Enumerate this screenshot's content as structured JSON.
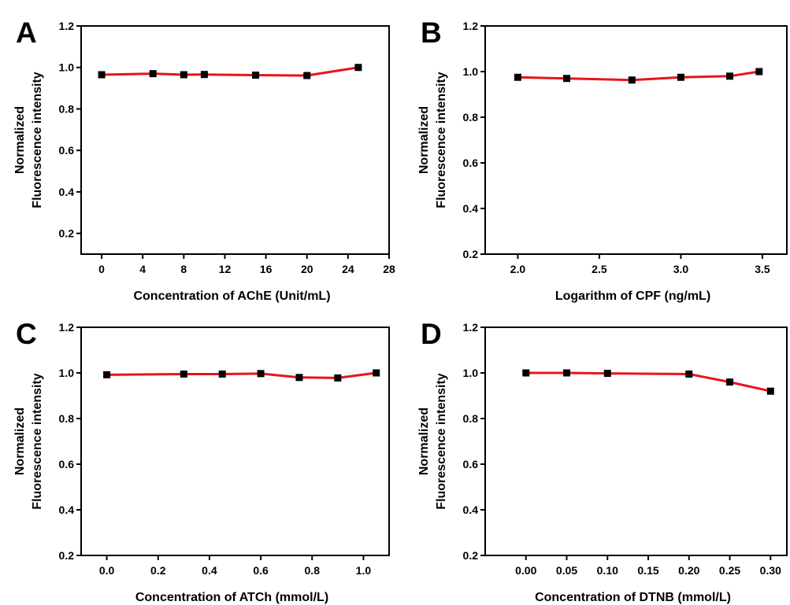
{
  "chart_data": [
    {
      "panel": "A",
      "type": "line",
      "xlabel": "Concentration of AChE (Unit/mL)",
      "ylabel": [
        "Normalized",
        "Fluorescence intensity"
      ],
      "xlim": [
        -2,
        28
      ],
      "ylim": [
        0.1,
        1.2
      ],
      "xticks": [
        0,
        4,
        8,
        12,
        16,
        20,
        24,
        28
      ],
      "xtick_labels": [
        "0",
        "4",
        "8",
        "12",
        "16",
        "20",
        "24",
        "28"
      ],
      "yticks": [
        0.2,
        0.4,
        0.6,
        0.8,
        1.0,
        1.2
      ],
      "ytick_labels": [
        "0.2",
        "0.4",
        "0.6",
        "0.8",
        "1.0",
        "1.2"
      ],
      "series": [
        {
          "x": [
            0,
            5,
            8,
            10,
            15,
            20,
            25
          ],
          "y": [
            0.965,
            0.97,
            0.965,
            0.966,
            0.963,
            0.961,
            1.0
          ]
        }
      ],
      "line_color": "#e8141b",
      "marker_color": "#000000",
      "grid": false
    },
    {
      "panel": "B",
      "type": "line",
      "xlabel": "Logarithm of CPF (ng/mL)",
      "ylabel": [
        "Normalized",
        "Fluorescence intensity"
      ],
      "xlim": [
        1.8,
        3.65
      ],
      "ylim": [
        0.2,
        1.2
      ],
      "xticks": [
        2.0,
        2.5,
        3.0,
        3.5
      ],
      "xtick_labels": [
        "2.0",
        "2.5",
        "3.0",
        "3.5"
      ],
      "yticks": [
        0.2,
        0.4,
        0.6,
        0.8,
        1.0,
        1.2
      ],
      "ytick_labels": [
        "0.2",
        "0.4",
        "0.6",
        "0.8",
        "1.0",
        "1.2"
      ],
      "series": [
        {
          "x": [
            2.0,
            2.3,
            2.7,
            3.0,
            3.3,
            3.48
          ],
          "y": [
            0.975,
            0.97,
            0.963,
            0.975,
            0.98,
            1.0
          ]
        }
      ],
      "line_color": "#e8141b",
      "marker_color": "#000000",
      "grid": false
    },
    {
      "panel": "C",
      "type": "line",
      "xlabel": "Concentration of ATCh (mmol/L)",
      "ylabel": [
        "Normalized",
        "Fluorescence intensity"
      ],
      "xlim": [
        -0.1,
        1.1
      ],
      "ylim": [
        0.2,
        1.2
      ],
      "xticks": [
        0.0,
        0.2,
        0.4,
        0.6,
        0.8,
        1.0
      ],
      "xtick_labels": [
        "0.0",
        "0.2",
        "0.4",
        "0.6",
        "0.8",
        "1.0"
      ],
      "yticks": [
        0.2,
        0.4,
        0.6,
        0.8,
        1.0,
        1.2
      ],
      "ytick_labels": [
        "0.2",
        "0.4",
        "0.6",
        "0.8",
        "1.0",
        "1.2"
      ],
      "series": [
        {
          "x": [
            0,
            0.3,
            0.45,
            0.6,
            0.75,
            0.9,
            1.05
          ],
          "y": [
            0.992,
            0.995,
            0.995,
            0.997,
            0.98,
            0.978,
            1.0
          ]
        }
      ],
      "line_color": "#e8141b",
      "marker_color": "#000000",
      "grid": false
    },
    {
      "panel": "D",
      "type": "line",
      "xlabel": "Concentration of DTNB (mmol/L)",
      "ylabel": [
        "Normalized",
        "Fluorescence intensity"
      ],
      "xlim": [
        -0.05,
        0.32
      ],
      "ylim": [
        0.2,
        1.2
      ],
      "xticks": [
        0.0,
        0.05,
        0.1,
        0.15,
        0.2,
        0.25,
        0.3
      ],
      "xtick_labels": [
        "0.00",
        "0.05",
        "0.10",
        "0.15",
        "0.20",
        "0.25",
        "0.30"
      ],
      "yticks": [
        0.2,
        0.4,
        0.6,
        0.8,
        1.0,
        1.2
      ],
      "ytick_labels": [
        "0.2",
        "0.4",
        "0.6",
        "0.8",
        "1.0",
        "1.2"
      ],
      "series": [
        {
          "x": [
            0,
            0.05,
            0.1,
            0.2,
            0.25,
            0.3
          ],
          "y": [
            1.0,
            1.0,
            0.998,
            0.995,
            0.96,
            0.92
          ]
        }
      ],
      "line_color": "#e8141b",
      "marker_color": "#000000",
      "grid": false
    }
  ]
}
